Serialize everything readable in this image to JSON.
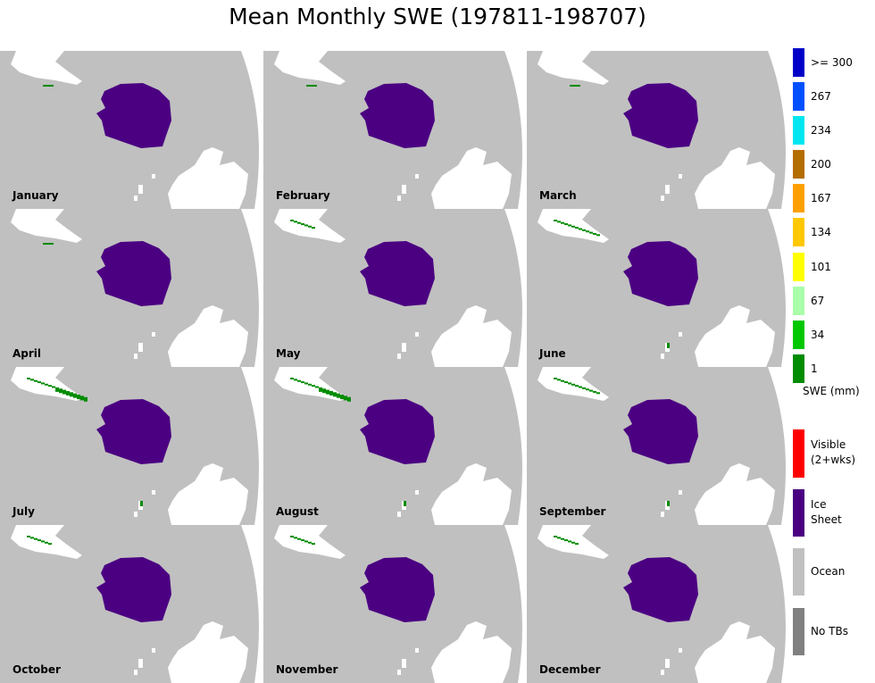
{
  "title": "Mean Monthly SWE (197811-198707)",
  "months": [
    {
      "label": "January",
      "snow_level": 0
    },
    {
      "label": "February",
      "snow_level": 0
    },
    {
      "label": "March",
      "snow_level": 0
    },
    {
      "label": "April",
      "snow_level": 0
    },
    {
      "label": "May",
      "snow_level": 1
    },
    {
      "label": "June",
      "snow_level": 2
    },
    {
      "label": "July",
      "snow_level": 3
    },
    {
      "label": "August",
      "snow_level": 3
    },
    {
      "label": "September",
      "snow_level": 2
    },
    {
      "label": "October",
      "snow_level": 1
    },
    {
      "label": "November",
      "snow_level": 1
    },
    {
      "label": "December",
      "snow_level": 1
    }
  ],
  "legend": {
    "swe_items": [
      {
        "label": ">= 300",
        "color": "#0000c8"
      },
      {
        "label": "267",
        "color": "#0050ff"
      },
      {
        "label": "234",
        "color": "#00e6f0"
      },
      {
        "label": "200",
        "color": "#b46e00"
      },
      {
        "label": "167",
        "color": "#ffa000"
      },
      {
        "label": "134",
        "color": "#ffc800"
      },
      {
        "label": "101",
        "color": "#ffff00"
      },
      {
        "label": "67",
        "color": "#aaffaa"
      },
      {
        "label": "34",
        "color": "#00c800"
      },
      {
        "label": "1",
        "color": "#008c00"
      }
    ],
    "unit_label": "SWE (mm)",
    "visible": {
      "line1": "Visible",
      "line2": "(2+wks)",
      "color": "#ff0000"
    },
    "ice_sheet": {
      "line1": "Ice",
      "line2": "Sheet",
      "color": "#4b0082"
    },
    "ocean": {
      "label": "Ocean",
      "color": "#c0c0c0"
    },
    "no_tbs": {
      "label": "No TBs",
      "color": "#808080"
    }
  },
  "map_colors": {
    "ocean": "#c0c0c0",
    "land": "#ffffff",
    "ice_sheet": "#4b0082",
    "snow": "#008c00"
  }
}
